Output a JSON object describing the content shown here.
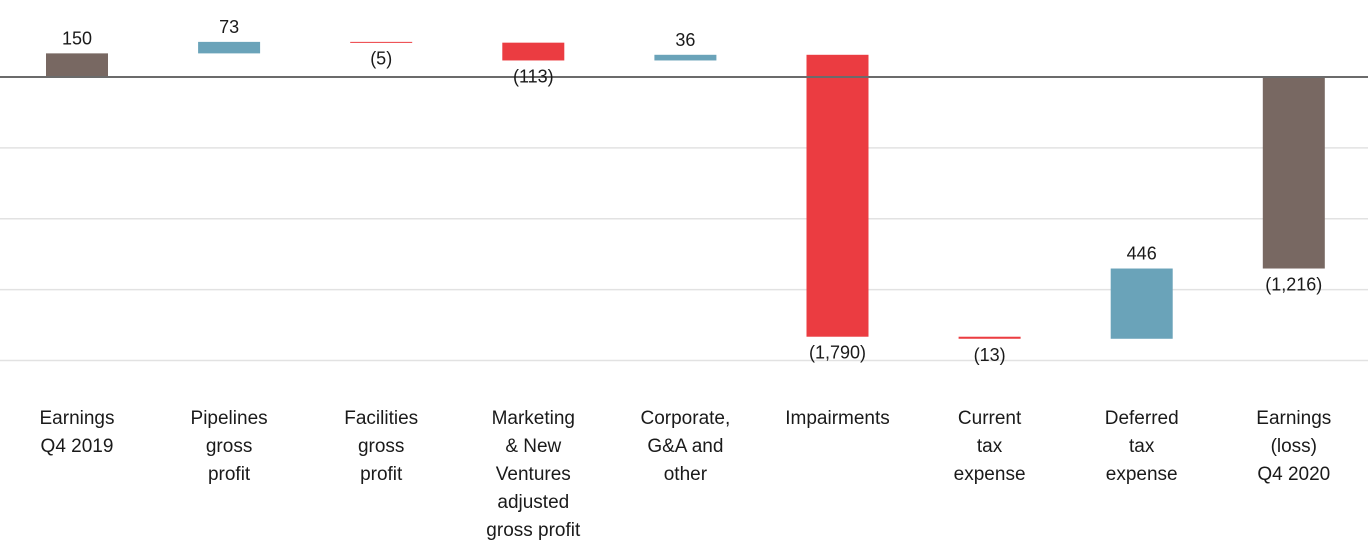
{
  "chart_data": {
    "type": "bar",
    "subtype": "waterfall",
    "title": "",
    "xlabel": "",
    "ylabel": "",
    "ylim": [
      -2000,
      375
    ],
    "gridlines": true,
    "categories": [
      [
        "Earnings",
        "Q4 2019"
      ],
      [
        "Pipelines",
        "gross",
        "profit"
      ],
      [
        "Facilities",
        "gross",
        "profit"
      ],
      [
        "Marketing",
        "& New",
        "Ventures",
        "adjusted",
        "gross profit"
      ],
      [
        "Corporate,",
        "G&A and",
        "other"
      ],
      [
        "Impairments"
      ],
      [
        "Current",
        "tax",
        "expense"
      ],
      [
        "Deferred",
        "tax",
        "expense"
      ],
      [
        "Earnings",
        "(loss)",
        "Q4 2020"
      ]
    ],
    "values": [
      150,
      73,
      -5,
      -113,
      36,
      -1790,
      -13,
      446,
      -1216
    ],
    "labels": [
      "150",
      "73",
      "(5)",
      "(113)",
      "36",
      "(1,790)",
      "(13)",
      "446",
      "(1,216)"
    ],
    "kinds": [
      "total",
      "increase",
      "decrease",
      "decrease",
      "increase",
      "decrease",
      "decrease",
      "increase",
      "total"
    ]
  },
  "colors": {
    "total": "#786862",
    "increase": "#6aa3b9",
    "decrease": "#eb3c41",
    "axis": "#6b6b6b",
    "grid": "#e2e2e2"
  }
}
